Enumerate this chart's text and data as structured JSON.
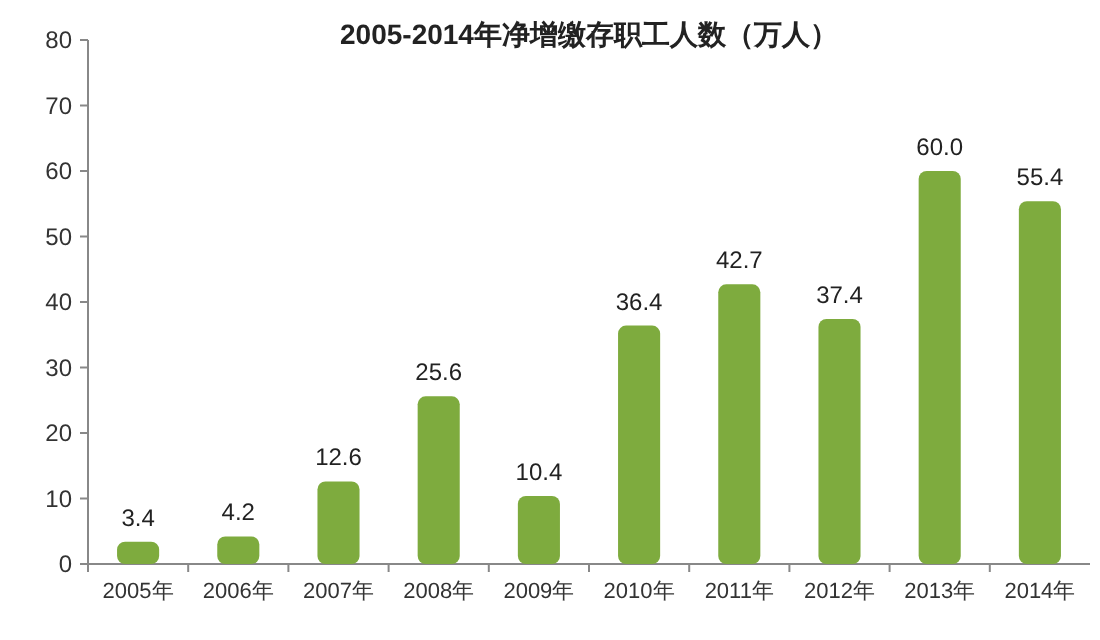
{
  "chart_data": {
    "type": "bar",
    "title": "2005-2014年净增缴存职工人数（万人）",
    "categories": [
      "2005年",
      "2006年",
      "2007年",
      "2008年",
      "2009年",
      "2010年",
      "2011年",
      "2012年",
      "2013年",
      "2014年"
    ],
    "values": [
      3.4,
      4.2,
      12.6,
      25.6,
      10.4,
      36.4,
      42.7,
      37.4,
      60.0,
      55.4
    ],
    "value_labels": [
      "3.4",
      "4.2",
      "12.6",
      "25.6",
      "10.4",
      "36.4",
      "42.7",
      "37.4",
      "60.0",
      "55.4"
    ],
    "color": "#7eab3e",
    "ylim": [
      0,
      80
    ],
    "yticks": [
      0,
      10,
      20,
      30,
      40,
      50,
      60,
      70,
      80
    ],
    "grid": false
  }
}
